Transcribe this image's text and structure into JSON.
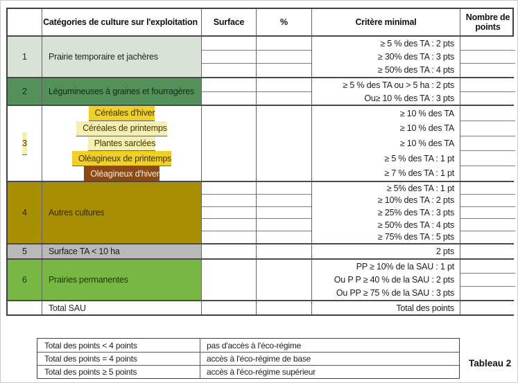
{
  "table": {
    "header": {
      "categories": "Catégories de culture sur l'exploitation",
      "surface": "Surface",
      "percent": "%",
      "criteria": "Critère minimal",
      "points": "Nombre de points"
    },
    "section1": {
      "num": "1",
      "label": "Prairie temporaire et jachères",
      "criteria": [
        "≥ 5 % des TA : 2 pts",
        "≥ 30% des TA : 3 pts",
        "≥ 50% des TA : 4 pts"
      ]
    },
    "section2": {
      "num": "2",
      "label": "Légumineuses à graines et fourragères",
      "criteria": [
        "≥ 5 % des TA ou > 5 ha : 2 pts",
        "Ou≥ 10 % des TA : 3 pts"
      ]
    },
    "section3": {
      "num": "3",
      "rows": [
        "Céréales d'hiver",
        "Céréales de printemps",
        "Plantes sarclées",
        "Oléagineux de printemps",
        "Oléagineux d'hiver"
      ],
      "criteria": [
        "≥ 10 % des TA",
        "≥ 10 % des TA",
        "≥ 10 % des TA",
        "≥ 5 % des TA : 1 pt",
        "≥ 7 % des TA : 1 pt"
      ]
    },
    "section4": {
      "num": "4",
      "label": "Autres cultures",
      "criteria": [
        "≥ 5% des TA : 1 pt",
        "≥ 10% des TA : 2 pts",
        "≥ 25% des TA : 3 pts",
        "≥ 50% des TA : 4 pts",
        "≥ 75% des TA : 5 pts"
      ]
    },
    "section5": {
      "num": "5",
      "label": "Surface TA < 10 ha",
      "criteria": [
        "2 pts"
      ]
    },
    "section6": {
      "num": "6",
      "label": "Prairies permanentes",
      "criteria": [
        "PP ≥ 10% de la SAU : 1 pt",
        "Ou P P ≥ 40 % de la SAU : 2 pts",
        "Ou PP ≥ 75 % de la SAU : 3 pts"
      ]
    },
    "total": {
      "label": "Total SAU",
      "points_label": "Total des points"
    }
  },
  "legend": {
    "rows": [
      {
        "condition": "Total des points < 4 points",
        "result": "pas d'accès à l'éco-régime"
      },
      {
        "condition": "Total des points = 4 points",
        "result": "accès à l'éco-régime de base"
      },
      {
        "condition": "Total des points ≥ 5 points",
        "result": "accès à l'éco-régime supérieur"
      }
    ]
  },
  "caption": "Tableau 2",
  "colors": {
    "section1_bg": "#d7e3d4",
    "section2_bg": "#54915a",
    "cereales_hiver_bg": "#f0cf2b",
    "cereales_printemps_bg": "#f6f0b0",
    "plantes_sarclees_bg": "#f6f0b0",
    "oleagineux_printemps_bg": "#f0cf2b",
    "oleagineux_hiver_bg": "#8e4a15",
    "section4_bg": "#a98f04",
    "section5_bg": "#b9bab8",
    "section6_bg": "#77b843",
    "border_dark": "#3f3f3f",
    "border_light": "#7b7b7b"
  }
}
